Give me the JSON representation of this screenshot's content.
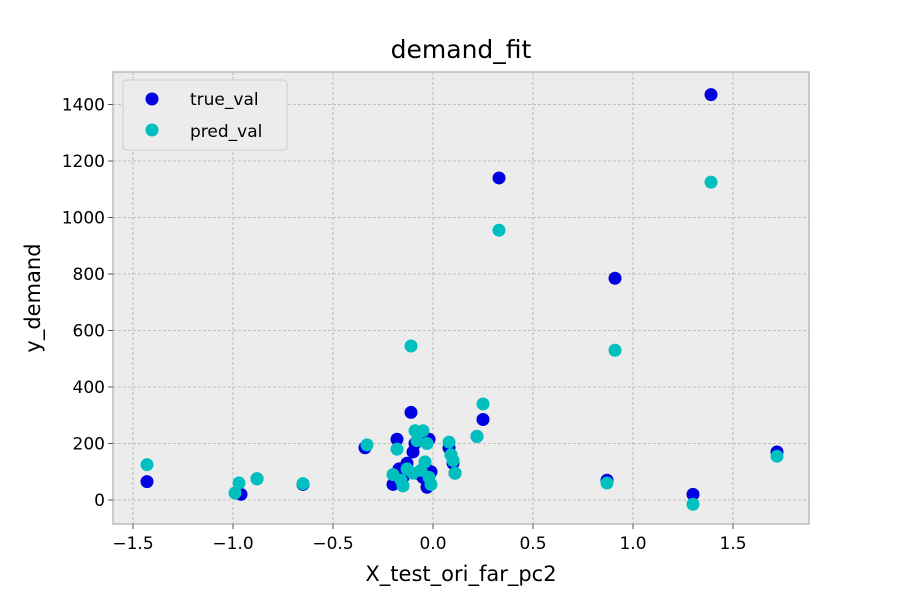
{
  "chart_data": {
    "type": "scatter",
    "title": "demand_fit",
    "xlabel": "X_test_ori_far_pc2",
    "ylabel": "y_demand",
    "xlim": [
      -1.6,
      1.88
    ],
    "ylim": [
      -85,
      1515
    ],
    "xticks": [
      -1.5,
      -1.0,
      -0.5,
      0.0,
      0.5,
      1.0,
      1.5
    ],
    "xtick_labels": [
      "−1.5",
      "−1.0",
      "−0.5",
      "0.0",
      "0.5",
      "1.0",
      "1.5"
    ],
    "yticks": [
      0,
      200,
      400,
      600,
      800,
      1000,
      1200,
      1400
    ],
    "ytick_labels": [
      "0",
      "200",
      "400",
      "600",
      "800",
      "1000",
      "1200",
      "1400"
    ],
    "grid": true,
    "legend_position": "top-left",
    "series": [
      {
        "name": "true_val",
        "color": "#0000e0",
        "x": [
          -1.43,
          -0.98,
          -0.96,
          -0.88,
          -0.65,
          -0.34,
          -0.2,
          -0.18,
          -0.17,
          -0.15,
          -0.13,
          -0.11,
          -0.1,
          -0.09,
          -0.08,
          -0.06,
          -0.05,
          -0.04,
          -0.03,
          -0.02,
          -0.01,
          0.08,
          0.09,
          0.1,
          0.11,
          0.22,
          0.25,
          0.33,
          0.87,
          0.91,
          1.3,
          1.39,
          1.72
        ],
        "y": [
          65,
          25,
          20,
          75,
          55,
          185,
          55,
          215,
          110,
          80,
          130,
          310,
          170,
          200,
          95,
          100,
          80,
          120,
          45,
          215,
          100,
          185,
          160,
          130,
          95,
          225,
          285,
          1140,
          70,
          785,
          20,
          1435,
          170
        ]
      },
      {
        "name": "pred_val",
        "color": "#00bfbf",
        "x": [
          -1.43,
          -0.99,
          -0.97,
          -0.88,
          -0.65,
          -0.33,
          -0.2,
          -0.18,
          -0.16,
          -0.15,
          -0.13,
          -0.11,
          -0.1,
          -0.09,
          -0.08,
          -0.06,
          -0.05,
          -0.04,
          -0.03,
          -0.02,
          -0.01,
          0.08,
          0.09,
          0.1,
          0.11,
          0.22,
          0.25,
          0.33,
          0.87,
          0.91,
          1.3,
          1.39,
          1.72
        ],
        "y": [
          125,
          25,
          60,
          75,
          58,
          195,
          90,
          180,
          70,
          50,
          110,
          545,
          95,
          245,
          210,
          105,
          245,
          135,
          200,
          80,
          55,
          205,
          160,
          140,
          95,
          225,
          340,
          955,
          60,
          530,
          -15,
          1125,
          155
        ]
      }
    ]
  }
}
